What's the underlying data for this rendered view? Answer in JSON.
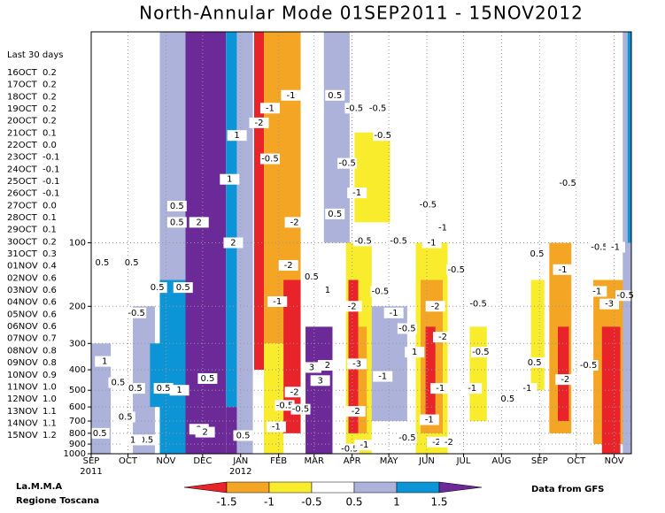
{
  "chart_data": {
    "type": "contour",
    "title": "North-Annular Mode 01SEP2011 - 15NOV2012",
    "xlim": [
      0,
      441
    ],
    "xticks": [
      {
        "value": 0,
        "label": "SEP"
      },
      {
        "value": 30,
        "label": "OCT"
      },
      {
        "value": 61,
        "label": "NOV"
      },
      {
        "value": 91,
        "label": "DEC"
      },
      {
        "value": 122,
        "label": "JAN"
      },
      {
        "value": 153,
        "label": "FEB"
      },
      {
        "value": 182,
        "label": "MAR"
      },
      {
        "value": 213,
        "label": "APR"
      },
      {
        "value": 243,
        "label": "MAY"
      },
      {
        "value": 274,
        "label": "JUN"
      },
      {
        "value": 304,
        "label": "JUL"
      },
      {
        "value": 335,
        "label": "AUG"
      },
      {
        "value": 366,
        "label": "SEP"
      },
      {
        "value": 396,
        "label": "OCT"
      },
      {
        "value": 427,
        "label": "NOV"
      }
    ],
    "xtick_years": [
      {
        "value": 0,
        "label": "2011"
      },
      {
        "value": 122,
        "label": "2012"
      }
    ],
    "ylim": [
      1000,
      10
    ],
    "log_y": true,
    "grid": true,
    "yticks": [
      100,
      200,
      300,
      400,
      500,
      600,
      700,
      800,
      900,
      1000
    ],
    "colors": [
      "#e8232a",
      "#f5a524",
      "#f8ec2c",
      "#ffffff",
      "#adb2db",
      "#0b95d6",
      "#6b2a97"
    ],
    "levels": [
      -1.5,
      -1,
      -0.5,
      0.5,
      1,
      1.5
    ],
    "patches": [
      [
        0,
        16,
        300,
        1000,
        4
      ],
      [
        34,
        52,
        200,
        1000,
        4
      ],
      [
        56,
        77,
        10,
        150,
        4
      ],
      [
        56,
        77,
        150,
        1000,
        5
      ],
      [
        48,
        59,
        300,
        600,
        5
      ],
      [
        77,
        110,
        10,
        1000,
        6
      ],
      [
        110,
        119,
        10,
        600,
        5
      ],
      [
        110,
        119,
        600,
        1000,
        6
      ],
      [
        119,
        132,
        10,
        1000,
        4
      ],
      [
        133,
        141,
        10,
        400,
        0
      ],
      [
        141,
        171,
        10,
        300,
        1
      ],
      [
        141,
        157,
        300,
        1000,
        2
      ],
      [
        157,
        171,
        150,
        800,
        0
      ],
      [
        175,
        197,
        250,
        1000,
        6
      ],
      [
        190,
        211,
        10,
        100,
        4
      ],
      [
        215,
        244,
        30,
        80,
        2
      ],
      [
        208,
        229,
        100,
        1000,
        2
      ],
      [
        218,
        225,
        250,
        800,
        1
      ],
      [
        210,
        218,
        150,
        800,
        0
      ],
      [
        229,
        258,
        200,
        700,
        4
      ],
      [
        265,
        291,
        100,
        1000,
        2
      ],
      [
        269,
        287,
        150,
        800,
        1
      ],
      [
        273,
        281,
        250,
        700,
        0
      ],
      [
        309,
        323,
        250,
        700,
        2
      ],
      [
        359,
        370,
        150,
        500,
        2
      ],
      [
        374,
        392,
        100,
        800,
        1
      ],
      [
        381,
        390,
        250,
        700,
        0
      ],
      [
        410,
        435,
        150,
        900,
        1
      ],
      [
        417,
        432,
        250,
        1000,
        0
      ],
      [
        434,
        441,
        10,
        1000,
        4
      ],
      [
        438,
        441,
        10,
        100,
        5
      ]
    ],
    "contour_labels": [
      [
        9,
        124,
        0.5
      ],
      [
        33,
        124,
        0.5
      ],
      [
        37,
        215,
        -0.5
      ],
      [
        54,
        163,
        0.5
      ],
      [
        75,
        163,
        0.5
      ],
      [
        70,
        80,
        0.5
      ],
      [
        88,
        80,
        2
      ],
      [
        70,
        67,
        0.5
      ],
      [
        119,
        31,
        1
      ],
      [
        113,
        50,
        1
      ],
      [
        116,
        100,
        2
      ],
      [
        137,
        27,
        -2
      ],
      [
        146,
        23,
        -1
      ],
      [
        163,
        20,
        -1
      ],
      [
        146,
        40,
        -0.5
      ],
      [
        166,
        80,
        -2
      ],
      [
        161,
        128,
        -2
      ],
      [
        152,
        190,
        -1
      ],
      [
        199,
        20,
        0.5
      ],
      [
        215,
        23,
        -0.5
      ],
      [
        234,
        23,
        -0.5
      ],
      [
        238,
        31,
        -0.5
      ],
      [
        209,
        42,
        -0.5
      ],
      [
        217,
        58,
        -1
      ],
      [
        199,
        73,
        0.5
      ],
      [
        222,
        98,
        -0.5
      ],
      [
        251,
        98,
        -0.5
      ],
      [
        275,
        66,
        -0.5
      ],
      [
        287,
        85,
        -1
      ],
      [
        278,
        100,
        -1
      ],
      [
        298,
        134,
        -0.5
      ],
      [
        180,
        145,
        0.5
      ],
      [
        193,
        168,
        1
      ],
      [
        213,
        200,
        -2
      ],
      [
        217,
        375,
        -3
      ],
      [
        236,
        170,
        -0.5
      ],
      [
        247,
        215,
        -1
      ],
      [
        258,
        255,
        -0.5
      ],
      [
        281,
        200,
        -2
      ],
      [
        287,
        280,
        -2
      ],
      [
        318,
        330,
        -0.5
      ],
      [
        316,
        195,
        -0.5
      ],
      [
        364,
        113,
        0.5
      ],
      [
        385,
        134,
        -1
      ],
      [
        389,
        52,
        -0.5
      ],
      [
        415,
        105,
        -0.5
      ],
      [
        428,
        105,
        -1
      ],
      [
        436,
        178,
        -0.5
      ],
      [
        423,
        195,
        -3
      ],
      [
        413,
        170,
        -1
      ],
      [
        387,
        445,
        -2
      ],
      [
        406,
        381,
        -0.5
      ],
      [
        362,
        370,
        0.5
      ],
      [
        356,
        490,
        -1
      ],
      [
        340,
        550,
        0.5
      ],
      [
        311,
        490,
        -1
      ],
      [
        285,
        490,
        -1
      ],
      [
        276,
        690,
        -1
      ],
      [
        258,
        840,
        -0.5
      ],
      [
        282,
        880,
        -2
      ],
      [
        292,
        880,
        -2
      ],
      [
        216,
        630,
        -2
      ],
      [
        238,
        430,
        -1
      ],
      [
        264,
        330,
        1
      ],
      [
        180,
        390,
        3
      ],
      [
        193,
        381,
        2
      ],
      [
        187,
        450,
        3
      ],
      [
        166,
        510,
        -2
      ],
      [
        158,
        590,
        -0.5
      ],
      [
        171,
        615,
        -0.5
      ],
      [
        151,
        745,
        -1
      ],
      [
        59,
        490,
        0.5
      ],
      [
        72,
        500,
        1
      ],
      [
        95,
        440,
        0.5
      ],
      [
        28,
        670,
        0.5
      ],
      [
        11,
        365,
        1
      ],
      [
        36,
        490,
        0.5
      ],
      [
        22,
        460,
        0.5
      ],
      [
        88,
        765,
        2
      ],
      [
        93,
        790,
        2
      ],
      [
        124,
        820,
        0.5
      ],
      [
        45,
        860,
        0.5
      ],
      [
        34,
        860,
        1
      ],
      [
        7,
        800,
        0.5
      ],
      [
        211,
        950,
        -0.5
      ],
      [
        223,
        910,
        -1
      ]
    ]
  },
  "side_panel": {
    "title": "Last 30 days",
    "rows": [
      [
        "16OCT",
        "0.2"
      ],
      [
        "17OCT",
        "0.2"
      ],
      [
        "18OCT",
        "0.2"
      ],
      [
        "19OCT",
        "0.2"
      ],
      [
        "20OCT",
        "0.2"
      ],
      [
        "21OCT",
        "0.1"
      ],
      [
        "22OCT",
        "0.0"
      ],
      [
        "23OCT",
        "-0.1"
      ],
      [
        "24OCT",
        "-0.1"
      ],
      [
        "25OCT",
        "-0.1"
      ],
      [
        "26OCT",
        "-0.1"
      ],
      [
        "27OCT",
        "0.0"
      ],
      [
        "28OCT",
        "0.1"
      ],
      [
        "29OCT",
        "0.1"
      ],
      [
        "30OCT",
        "0.2"
      ],
      [
        "31OCT",
        "0.3"
      ],
      [
        "01NOV",
        "0.4"
      ],
      [
        "02NOV",
        "0.6"
      ],
      [
        "03NOV",
        "0.6"
      ],
      [
        "04NOV",
        "0.6"
      ],
      [
        "05NOV",
        "0.6"
      ],
      [
        "06NOV",
        "0.6"
      ],
      [
        "07NOV",
        "0.7"
      ],
      [
        "08NOV",
        "0.8"
      ],
      [
        "09NOV",
        "0.8"
      ],
      [
        "10NOV",
        "0.9"
      ],
      [
        "11NOV",
        "1.0"
      ],
      [
        "12NOV",
        "1.0"
      ],
      [
        "13NOV",
        "1.1"
      ],
      [
        "14NOV",
        "1.1"
      ],
      [
        "15NOV",
        "1.2"
      ]
    ]
  },
  "credits": {
    "left": [
      "La.M.M.A",
      "Regione Toscana"
    ],
    "right": "Data from GFS"
  }
}
